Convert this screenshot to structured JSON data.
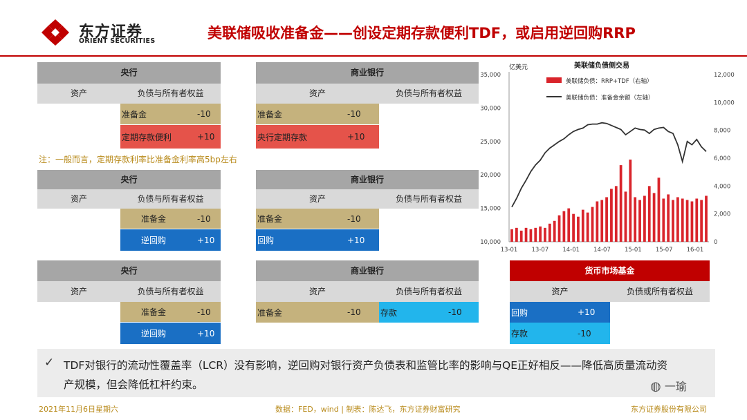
{
  "header": {
    "logo_cn": "东方证券",
    "logo_en": "ORIENT SECURITIES",
    "title": "美联储吸收准备金——创设定期存款便利TDF，或启用逆回购RRP"
  },
  "tables": {
    "t1": {
      "title": "央行",
      "col_assets": "资产",
      "col_liab": "负债与所有者权益",
      "rows": [
        {
          "label": "准备金",
          "value": "-10"
        },
        {
          "label": "定期存款便利",
          "value": "+10"
        }
      ]
    },
    "t2": {
      "title": "商业银行",
      "col_assets": "资产",
      "col_liab": "负债与所有者权益",
      "rows": [
        {
          "label": "准备金",
          "value": "-10"
        },
        {
          "label": "央行定期存款",
          "value": "+10"
        }
      ]
    },
    "t3": {
      "title": "央行",
      "col_assets": "资产",
      "col_liab": "负债与所有者权益",
      "rows": [
        {
          "label": "准备金",
          "value": "-10"
        },
        {
          "label": "逆回购",
          "value": "+10"
        }
      ]
    },
    "t4": {
      "title": "商业银行",
      "col_assets": "资产",
      "col_liab": "负债与所有者权益",
      "rows": [
        {
          "label": "准备金",
          "value": "-10"
        },
        {
          "label": "回购",
          "value": "+10"
        }
      ]
    },
    "t5": {
      "title": "央行",
      "col_assets": "资产",
      "col_liab": "负债与所有者权益",
      "rows": [
        {
          "label": "准备金",
          "value": "-10"
        },
        {
          "label": "逆回购",
          "value": "+10"
        }
      ]
    },
    "t6": {
      "title": "商业银行",
      "col_assets": "资产",
      "col_liab": "负债与所有者权益",
      "row_asset": {
        "label": "准备金",
        "value": "-10"
      },
      "row_liab": {
        "label": "存款",
        "value": "-10"
      }
    },
    "t7": {
      "title": "货币市场基金",
      "col_assets": "资产",
      "col_liab": "负债或所有者权益",
      "rows": [
        {
          "label": "回购",
          "value": "+10"
        },
        {
          "label": "存款",
          "value": "-10"
        }
      ]
    }
  },
  "note": "注：一般而言，定期存款利率比准备金利率高5bp左右",
  "bottom_text": "TDF对银行的流动性覆盖率（LCR）没有影响，逆回购对银行资产负债表和监管比率的影响与QE正好相反——降低高质量流动资产规模，但会降低杠杆约束。",
  "footer": {
    "date": "2021年11月6日星期六",
    "source": "数据：FED，wind | 制表：陈达飞，东方证券财富研究",
    "company": "东方证券股份有限公司",
    "watermark": "一瑜"
  },
  "colors": {
    "brand_red": "#c00000",
    "gold": "#c5b27d",
    "blue": "#1a6fc4",
    "cyan": "#22b5ec",
    "cell_red": "#e5534a"
  },
  "chart_data": {
    "type": "bar+line",
    "title": "美联储负债侧交易",
    "unit_label": "亿美元",
    "legend": [
      "美联储负债：RRP+TDF（右轴）",
      "美联储负债：准备金余额（左轴）"
    ],
    "x_ticks": [
      "13-01",
      "13-07",
      "14-01",
      "14-07",
      "15-01",
      "15-07",
      "16-01"
    ],
    "y_left": {
      "min": 10000,
      "max": 35000,
      "ticks": [
        "10,000",
        "15,000",
        "20,000",
        "25,000",
        "30,000",
        "35,000"
      ]
    },
    "y_right": {
      "min": 0,
      "max": 12000,
      "ticks": [
        "0",
        "2,000",
        "4,000",
        "6,000",
        "8,000",
        "10,000",
        "12,000"
      ]
    },
    "series": [
      {
        "name": "准备金余额",
        "axis": "left",
        "type": "line",
        "x": [
          0,
          1,
          2,
          3,
          4,
          5,
          6,
          7,
          8,
          9,
          10,
          11,
          12,
          13,
          14,
          15,
          16,
          17,
          18,
          19,
          20,
          21,
          22,
          23,
          24,
          25,
          26,
          27,
          28,
          29,
          30,
          31,
          32,
          33,
          34,
          35,
          36,
          37,
          38,
          39,
          40,
          41
        ],
        "values": [
          15200,
          16500,
          18000,
          19200,
          20500,
          21500,
          22200,
          23300,
          24000,
          24500,
          25000,
          25400,
          26000,
          26500,
          26800,
          27000,
          27500,
          27600,
          27600,
          27800,
          27700,
          27400,
          27100,
          26800,
          26000,
          26500,
          27000,
          26800,
          26700,
          26200,
          26800,
          27000,
          27100,
          26500,
          26200,
          24500,
          22000,
          25000,
          24500,
          25300,
          24200,
          23500
        ]
      },
      {
        "name": "RRP+TDF",
        "axis": "right",
        "type": "bar",
        "x": [
          0,
          1,
          2,
          3,
          4,
          5,
          6,
          7,
          8,
          9,
          10,
          11,
          12,
          13,
          14,
          15,
          16,
          17,
          18,
          19,
          20,
          21,
          22,
          23,
          24,
          25,
          26,
          27,
          28,
          29,
          30,
          31,
          32,
          33,
          34,
          35,
          36,
          37,
          38,
          39,
          40,
          41
        ],
        "values": [
          900,
          1000,
          800,
          1000,
          900,
          1000,
          1100,
          1000,
          1300,
          1500,
          1900,
          2200,
          2400,
          2000,
          1800,
          2300,
          2100,
          2500,
          2900,
          3000,
          3200,
          3800,
          4000,
          5500,
          3600,
          5900,
          3200,
          3000,
          3300,
          4000,
          3500,
          4600,
          3100,
          3400,
          3000,
          3200,
          3100,
          3000,
          2900,
          3100,
          3000,
          3300
        ]
      }
    ]
  }
}
